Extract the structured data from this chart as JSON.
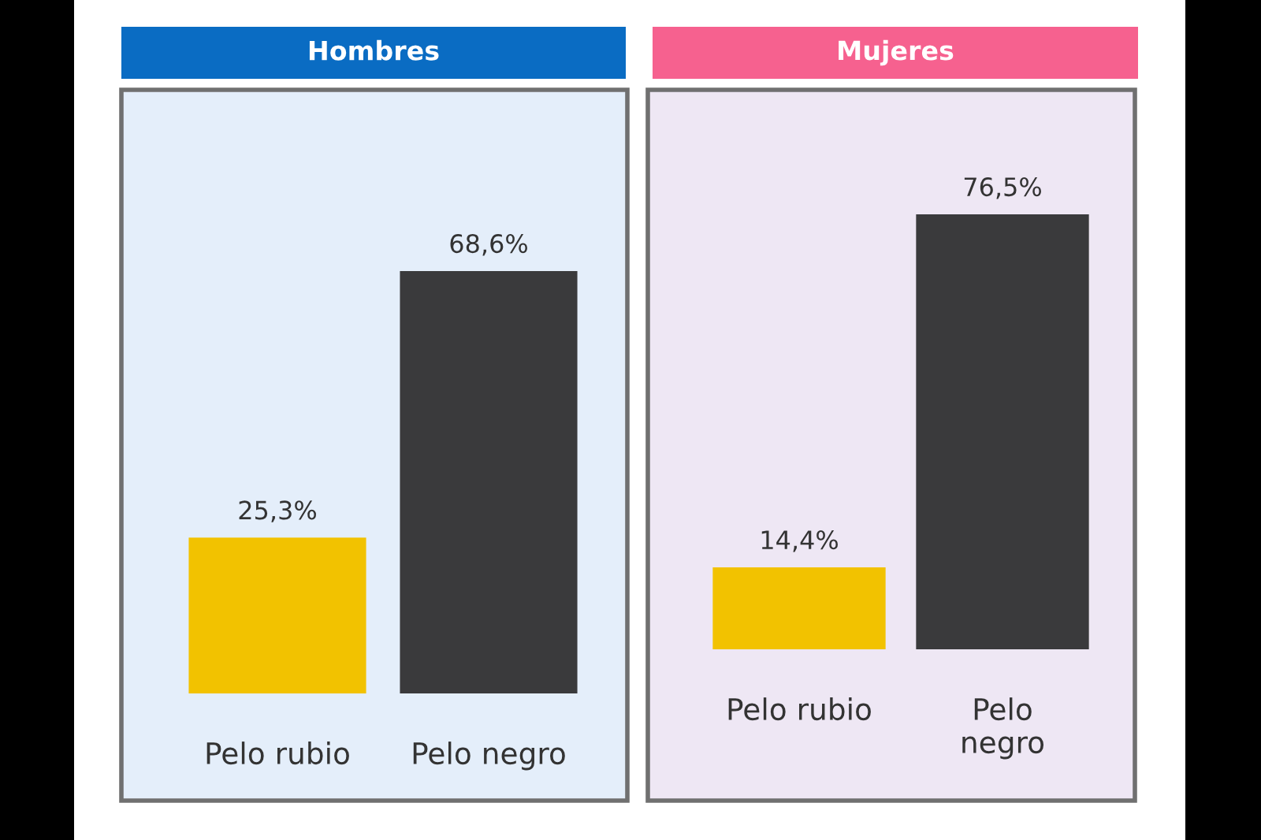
{
  "chart_data": [
    {
      "type": "bar",
      "title": "Hombres",
      "categories": [
        "Pelo rubio",
        "Pelo negro"
      ],
      "values": [
        25.3,
        68.6
      ],
      "colors": [
        "#f2c200",
        "#3a3a3c"
      ],
      "value_labels": [
        "25,3%",
        "68,6%"
      ],
      "tick_labels": "x"
    },
    {
      "type": "bar",
      "title": "Mujeres",
      "categories": [
        "Pelo rubio",
        "Pelo\nnegro"
      ],
      "values": [
        14.4,
        76.5
      ],
      "colors": [
        "#f2c200",
        "#3a3a3c"
      ],
      "value_labels": [
        "14,4%",
        "76,5%"
      ],
      "tick_labels": "x"
    }
  ]
}
